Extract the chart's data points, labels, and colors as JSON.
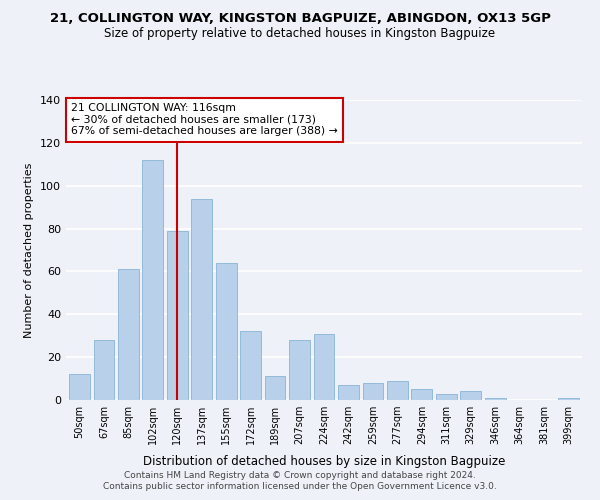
{
  "title": "21, COLLINGTON WAY, KINGSTON BAGPUIZE, ABINGDON, OX13 5GP",
  "subtitle": "Size of property relative to detached houses in Kingston Bagpuize",
  "xlabel": "Distribution of detached houses by size in Kingston Bagpuize",
  "ylabel": "Number of detached properties",
  "bar_labels": [
    "50sqm",
    "67sqm",
    "85sqm",
    "102sqm",
    "120sqm",
    "137sqm",
    "155sqm",
    "172sqm",
    "189sqm",
    "207sqm",
    "224sqm",
    "242sqm",
    "259sqm",
    "277sqm",
    "294sqm",
    "311sqm",
    "329sqm",
    "346sqm",
    "364sqm",
    "381sqm",
    "399sqm"
  ],
  "bar_values": [
    12,
    28,
    61,
    112,
    79,
    94,
    64,
    32,
    11,
    28,
    31,
    7,
    8,
    9,
    5,
    3,
    4,
    1,
    0,
    0,
    1
  ],
  "bar_color": "#b8d0ea",
  "bar_edge_color": "#8ab4d8",
  "highlight_index": 4,
  "highlight_line_color": "#cc0000",
  "annotation_text": "21 COLLINGTON WAY: 116sqm\n← 30% of detached houses are smaller (173)\n67% of semi-detached houses are larger (388) →",
  "annotation_box_edge_color": "#cc0000",
  "annotation_box_face_color": "#ffffff",
  "ylim": [
    0,
    140
  ],
  "yticks": [
    0,
    20,
    40,
    60,
    80,
    100,
    120,
    140
  ],
  "footer_line1": "Contains HM Land Registry data © Crown copyright and database right 2024.",
  "footer_line2": "Contains public sector information licensed under the Open Government Licence v3.0.",
  "bg_color": "#eef2f8",
  "grid_color": "#ffffff"
}
